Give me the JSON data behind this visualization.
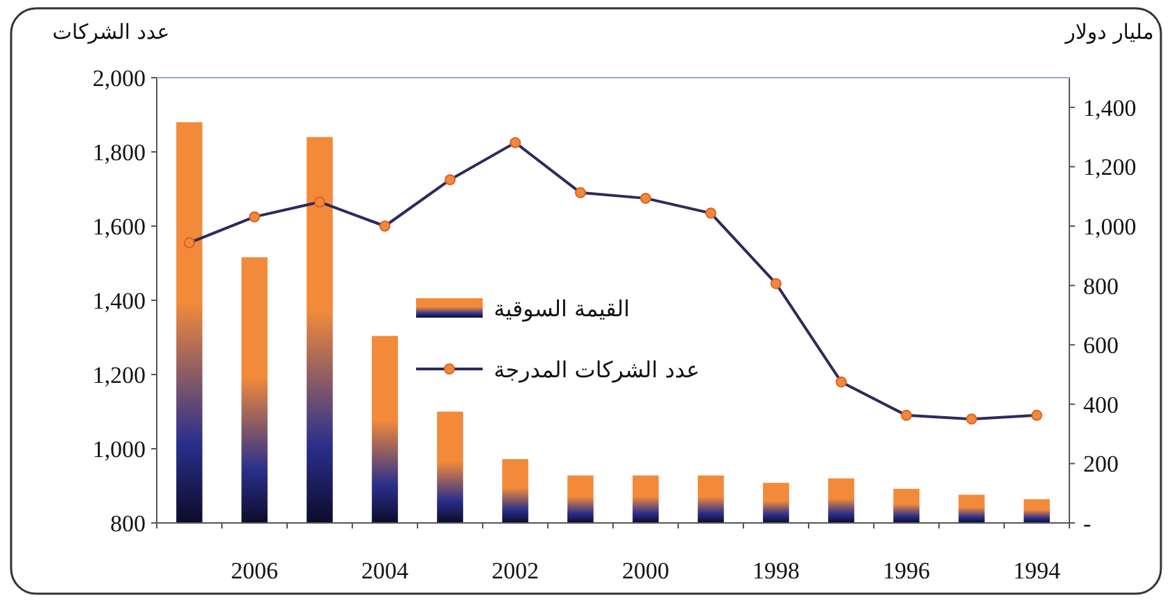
{
  "chart_data": {
    "type": "bar",
    "ylabel": "عدد الشركات",
    "y2label": "مليار دولار",
    "categories": [
      null,
      "2006",
      null,
      "2004",
      null,
      "2002",
      null,
      "2000",
      null,
      "1998",
      null,
      "1996",
      null,
      "1994"
    ],
    "series": [
      {
        "name": "القيمة السوقية",
        "axis": "y2",
        "color": "#f28a3a",
        "values": [
          1350,
          895,
          1300,
          630,
          375,
          215,
          160,
          160,
          160,
          135,
          150,
          115,
          95,
          80
        ]
      },
      {
        "name": "عدد الشركات المدرجة",
        "type": "line",
        "axis": "y",
        "color": "#2e2a5c",
        "marker": "circle",
        "values": [
          1555,
          1625,
          1665,
          1600,
          1725,
          1825,
          1690,
          1675,
          1635,
          1445,
          1180,
          1090,
          1080,
          1090
        ]
      }
    ],
    "ylim": [
      800,
      2000
    ],
    "yticks": [
      {
        "value": 800,
        "label": "800"
      },
      {
        "value": 1000,
        "label": "1,000"
      },
      {
        "value": 1200,
        "label": "1,200"
      },
      {
        "value": 1400,
        "label": "1,400"
      },
      {
        "value": 1600,
        "label": "1,600"
      },
      {
        "value": 1800,
        "label": "1,800"
      },
      {
        "value": 2000,
        "label": "2,000"
      }
    ],
    "y2lim": [
      0,
      1500
    ],
    "y2ticks": [
      {
        "value": 0,
        "label": "-"
      },
      {
        "value": 200,
        "label": "200"
      },
      {
        "value": 400,
        "label": "400"
      },
      {
        "value": 600,
        "label": "600"
      },
      {
        "value": 800,
        "label": "800"
      },
      {
        "value": 1000,
        "label": "1,000"
      },
      {
        "value": 1200,
        "label": "1,200"
      },
      {
        "value": 1400,
        "label": "1,400"
      }
    ],
    "legend": "center",
    "grid": false
  }
}
